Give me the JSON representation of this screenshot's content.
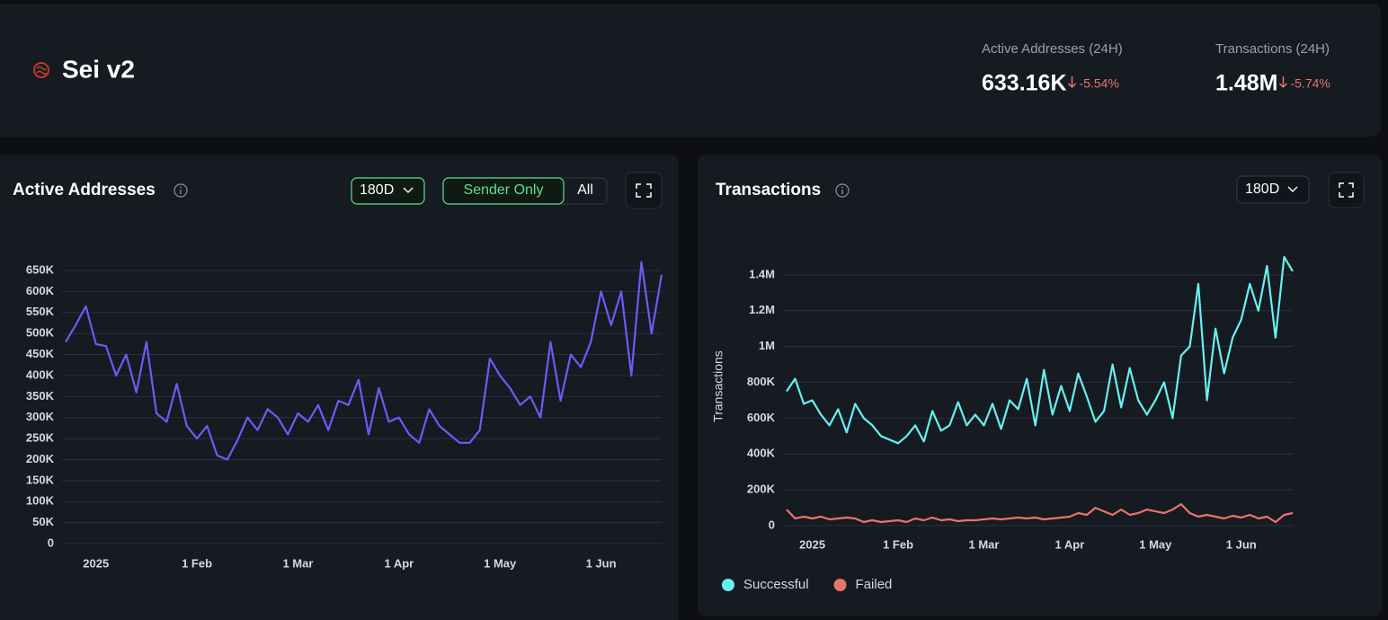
{
  "header": {
    "title": "Sei v2",
    "stats": [
      {
        "label": "Active Addresses (24H)",
        "value": "633.16K",
        "change": "-5.54%"
      },
      {
        "label": "Transactions (24H)",
        "value": "1.48M",
        "change": "-5.74%"
      }
    ]
  },
  "chart_data": [
    {
      "type": "line",
      "title": "Active Addresses",
      "controls": {
        "range": "180D",
        "filters": [
          "Sender Only",
          "All"
        ]
      },
      "categories": [
        null,
        null,
        null,
        "2025",
        null,
        null,
        null,
        null,
        null,
        null,
        null,
        null,
        null,
        "1 Feb",
        null,
        null,
        null,
        null,
        null,
        null,
        null,
        null,
        null,
        "1 Mar",
        null,
        null,
        null,
        null,
        null,
        null,
        null,
        null,
        null,
        "1 Apr",
        null,
        null,
        null,
        null,
        null,
        null,
        null,
        null,
        null,
        "1 May",
        null,
        null,
        null,
        null,
        null,
        null,
        null,
        null,
        null,
        "1 Jun",
        null,
        null,
        null,
        null,
        null,
        null
      ],
      "values": [
        480000,
        520000,
        565000,
        475000,
        470000,
        400000,
        450000,
        360000,
        480000,
        310000,
        290000,
        380000,
        280000,
        250000,
        280000,
        210000,
        200000,
        245000,
        300000,
        270000,
        320000,
        300000,
        260000,
        310000,
        290000,
        330000,
        270000,
        340000,
        330000,
        390000,
        260000,
        370000,
        290000,
        300000,
        260000,
        240000,
        320000,
        280000,
        260000,
        240000,
        240000,
        270000,
        440000,
        400000,
        370000,
        330000,
        350000,
        300000,
        480000,
        340000,
        450000,
        420000,
        480000,
        600000,
        520000,
        600000,
        400000,
        670000,
        500000,
        640000
      ],
      "color": "#7358f5",
      "ylim": [
        0,
        680000
      ],
      "yticks": [
        {
          "value": 0,
          "label": "0"
        },
        {
          "value": 50000,
          "label": "50K"
        },
        {
          "value": 100000,
          "label": "100K"
        },
        {
          "value": 150000,
          "label": "150K"
        },
        {
          "value": 200000,
          "label": "200K"
        },
        {
          "value": 250000,
          "label": "250K"
        },
        {
          "value": 300000,
          "label": "300K"
        },
        {
          "value": 350000,
          "label": "350K"
        },
        {
          "value": 400000,
          "label": "400K"
        },
        {
          "value": 450000,
          "label": "450K"
        },
        {
          "value": 500000,
          "label": "500K"
        },
        {
          "value": 550000,
          "label": "550K"
        },
        {
          "value": 600000,
          "label": "600K"
        },
        {
          "value": 650000,
          "label": "650K"
        }
      ],
      "grid": true
    },
    {
      "type": "line",
      "title": "Transactions",
      "controls": {
        "range": "180D"
      },
      "y_label": "Transactions",
      "categories": [
        null,
        null,
        null,
        "2025",
        null,
        null,
        null,
        null,
        null,
        null,
        null,
        null,
        null,
        "1 Feb",
        null,
        null,
        null,
        null,
        null,
        null,
        null,
        null,
        null,
        "1 Mar",
        null,
        null,
        null,
        null,
        null,
        null,
        null,
        null,
        null,
        "1 Apr",
        null,
        null,
        null,
        null,
        null,
        null,
        null,
        null,
        null,
        "1 May",
        null,
        null,
        null,
        null,
        null,
        null,
        null,
        null,
        null,
        "1 Jun",
        null,
        null,
        null,
        null,
        null,
        null
      ],
      "series": [
        {
          "name": "Successful",
          "color": "#67f0f0",
          "values": [
            750000,
            820000,
            680000,
            700000,
            620000,
            560000,
            650000,
            520000,
            680000,
            600000,
            560000,
            500000,
            480000,
            460000,
            500000,
            560000,
            470000,
            640000,
            530000,
            560000,
            690000,
            560000,
            620000,
            560000,
            680000,
            540000,
            700000,
            650000,
            820000,
            560000,
            870000,
            620000,
            780000,
            640000,
            850000,
            720000,
            580000,
            640000,
            900000,
            660000,
            880000,
            700000,
            620000,
            700000,
            800000,
            600000,
            950000,
            1000000,
            1350000,
            700000,
            1100000,
            850000,
            1050000,
            1150000,
            1350000,
            1200000,
            1450000,
            1050000,
            1500000,
            1420000
          ]
        },
        {
          "name": "Failed",
          "color": "#e8746c",
          "values": [
            90000,
            40000,
            50000,
            40000,
            50000,
            35000,
            40000,
            45000,
            40000,
            20000,
            30000,
            20000,
            25000,
            30000,
            20000,
            40000,
            30000,
            45000,
            30000,
            35000,
            25000,
            30000,
            30000,
            35000,
            40000,
            35000,
            40000,
            45000,
            40000,
            45000,
            35000,
            40000,
            45000,
            50000,
            70000,
            60000,
            100000,
            80000,
            60000,
            90000,
            60000,
            70000,
            90000,
            80000,
            70000,
            90000,
            120000,
            70000,
            50000,
            60000,
            50000,
            40000,
            55000,
            45000,
            60000,
            40000,
            50000,
            20000,
            60000,
            70000
          ]
        }
      ],
      "ylim": [
        0,
        1520000
      ],
      "yticks": [
        {
          "value": 0,
          "label": "0"
        },
        {
          "value": 200000,
          "label": "200K"
        },
        {
          "value": 400000,
          "label": "400K"
        },
        {
          "value": 600000,
          "label": "600K"
        },
        {
          "value": 800000,
          "label": "800K"
        },
        {
          "value": 1000000,
          "label": "1M"
        },
        {
          "value": 1200000,
          "label": "1.2M"
        },
        {
          "value": 1400000,
          "label": "1.4M"
        }
      ],
      "grid": true,
      "legend": "bottom-left"
    }
  ]
}
